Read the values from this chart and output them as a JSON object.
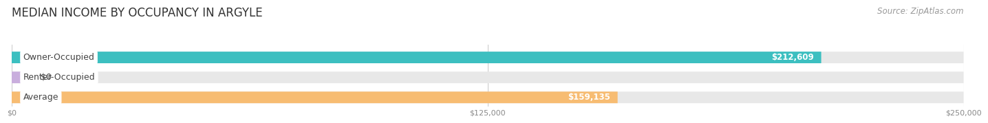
{
  "title": "MEDIAN INCOME BY OCCUPANCY IN ARGYLE",
  "source": "Source: ZipAtlas.com",
  "categories": [
    "Owner-Occupied",
    "Renter-Occupied",
    "Average"
  ],
  "values": [
    212609,
    0,
    159135
  ],
  "labels": [
    "$212,609",
    "$0",
    "$159,135"
  ],
  "bar_colors": [
    "#3cbfc0",
    "#c9aedd",
    "#f7bc72"
  ],
  "bar_bg_color": "#e8e8e8",
  "xlim": [
    0,
    250000
  ],
  "xtick_labels": [
    "$0",
    "$125,000",
    "$250,000"
  ],
  "xtick_vals": [
    0,
    125000,
    250000
  ],
  "title_fontsize": 12,
  "source_fontsize": 8.5,
  "label_fontsize": 9,
  "value_fontsize": 8.5,
  "bar_height": 0.58,
  "background_color": "#ffffff",
  "text_color": "#444444",
  "value_label_color": "#ffffff",
  "grid_color": "#cccccc",
  "renter_small_val": 3500
}
